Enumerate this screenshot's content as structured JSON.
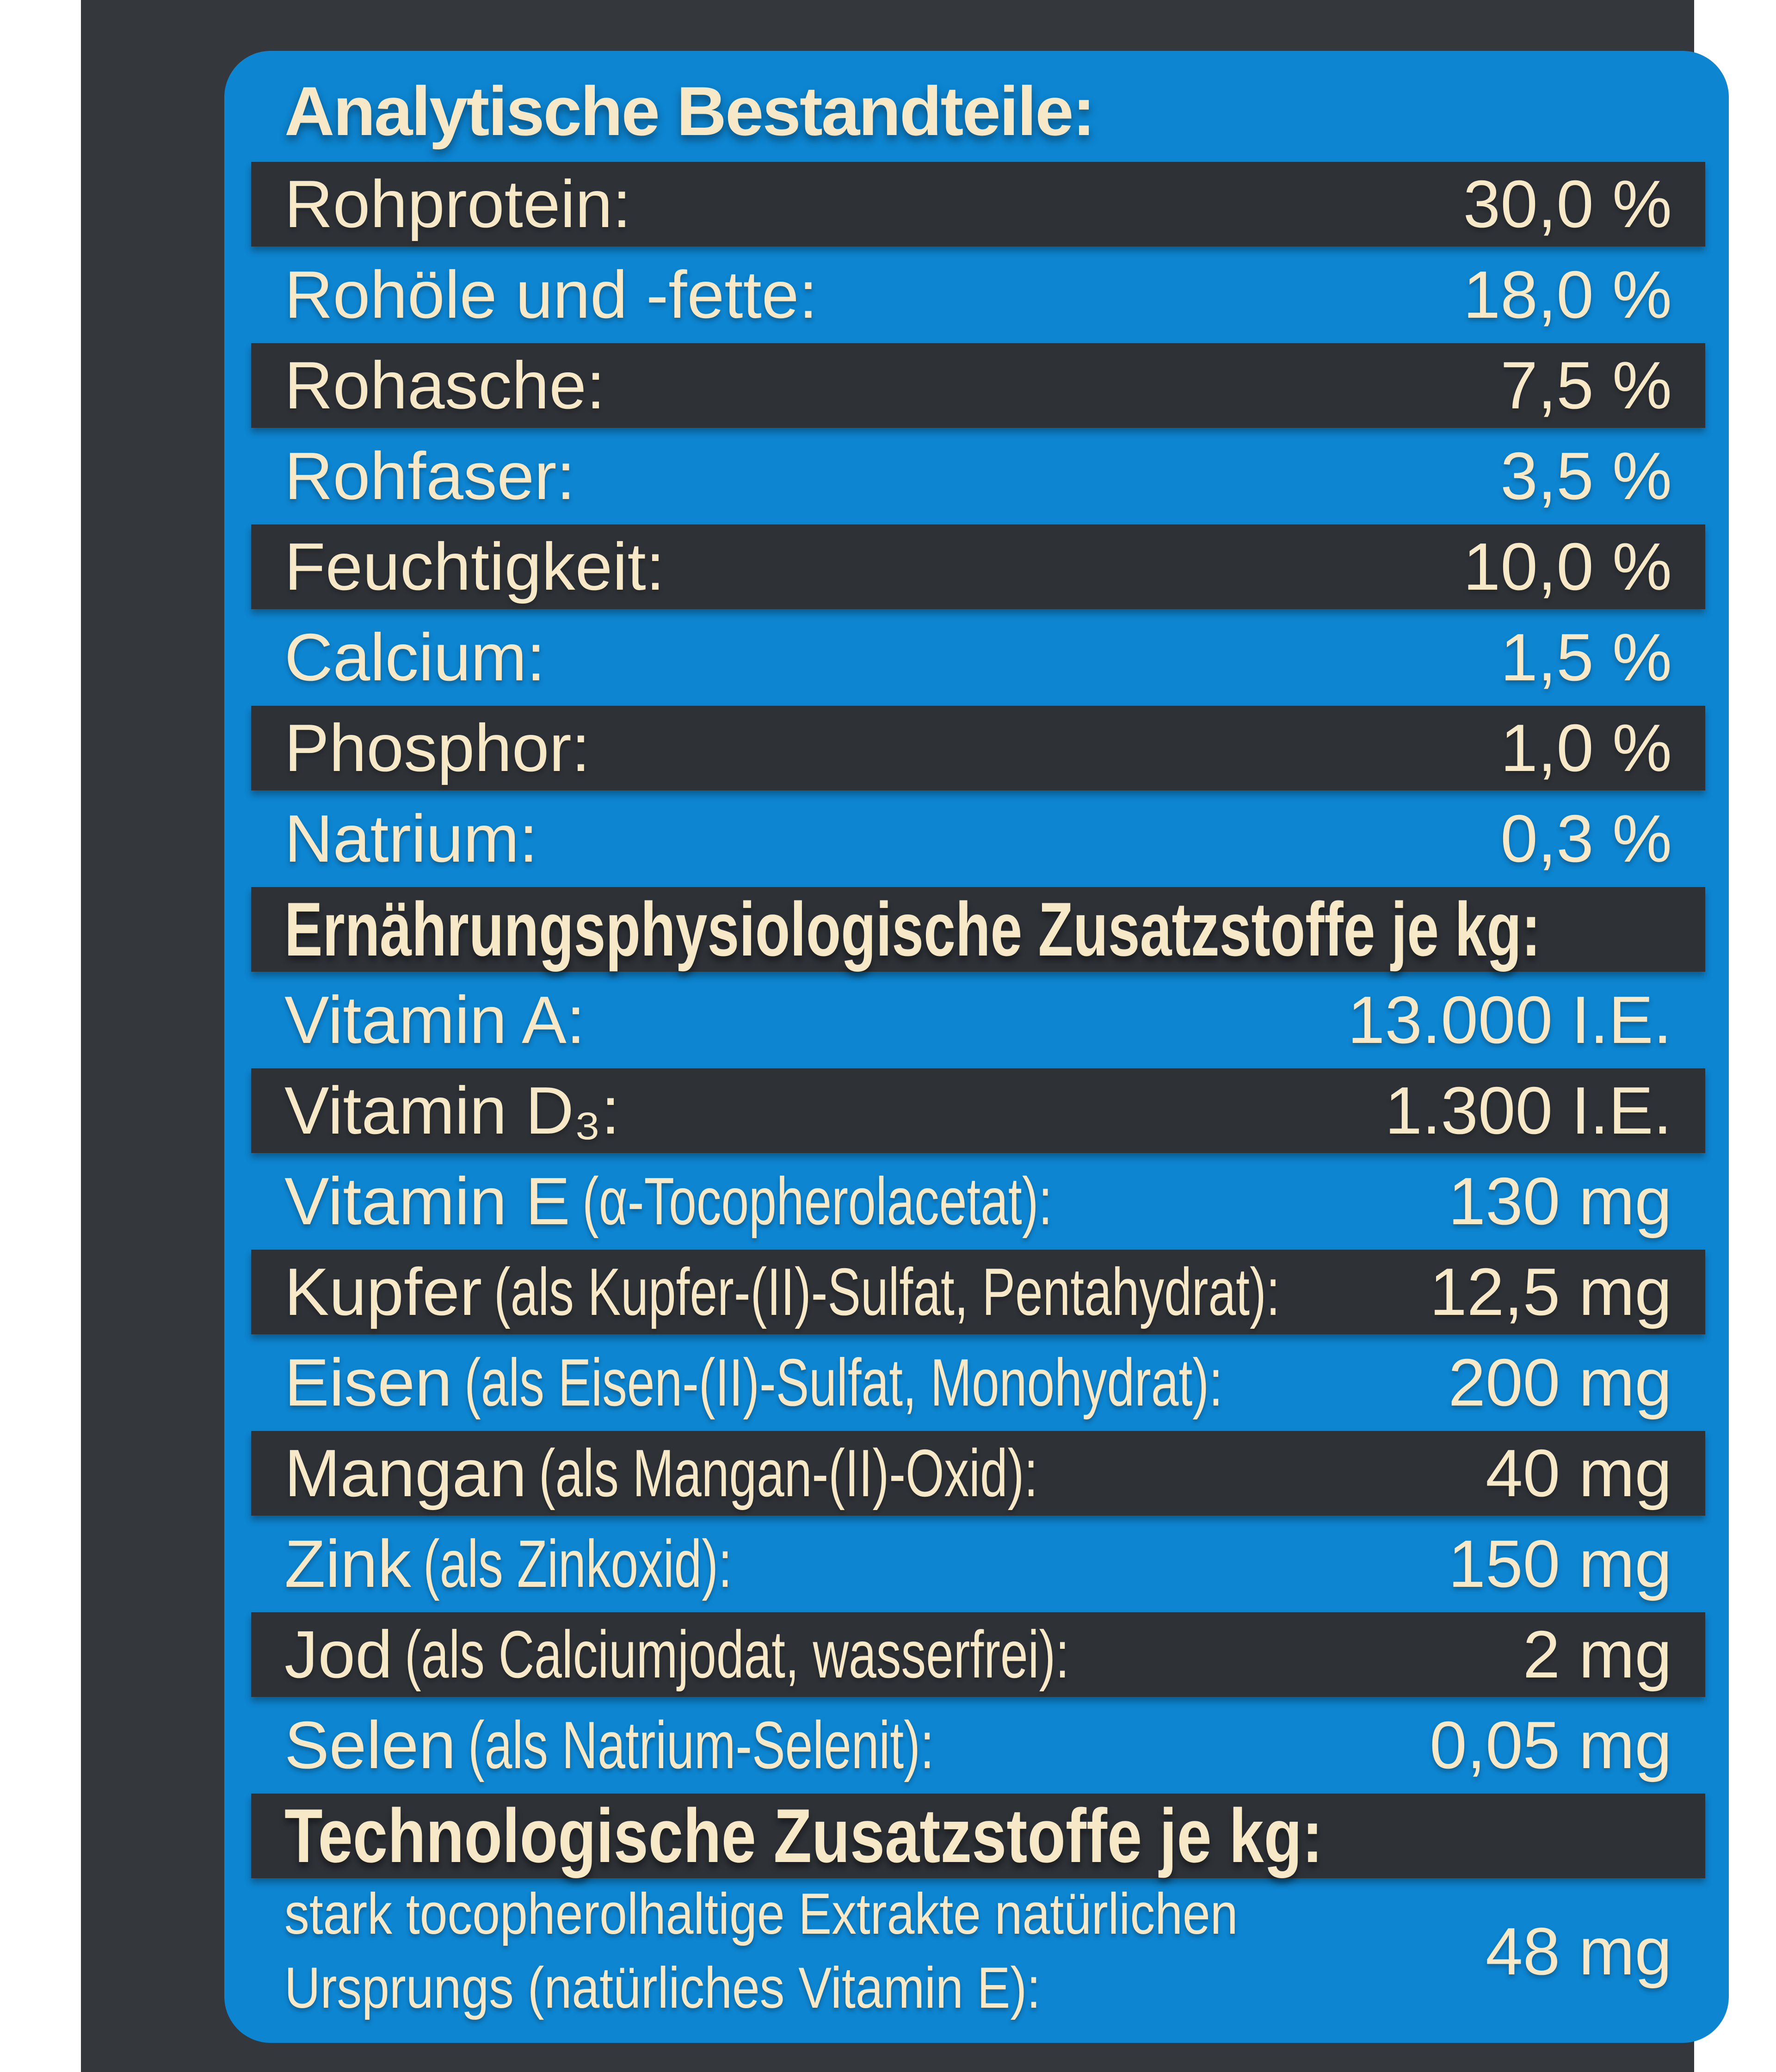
{
  "colors": {
    "page_background": "#ffffff",
    "label_background": "#34373c",
    "panel_blue": "#0d85d1",
    "row_dark": "#2e3237",
    "text_cream": "#f7e9c8"
  },
  "title": "Analytische Bestandteile:",
  "rows": [
    {
      "name": "Rohprotein:",
      "detail": "",
      "value": "30,0 %"
    },
    {
      "name": "Rohöle und -fette:",
      "detail": "",
      "value": "18,0 %"
    },
    {
      "name": "Rohasche:",
      "detail": "",
      "value": "7,5 %"
    },
    {
      "name": "Rohfaser:",
      "detail": "",
      "value": "3,5 %"
    },
    {
      "name": "Feuchtigkeit:",
      "detail": "",
      "value": "10,0 %"
    },
    {
      "name": "Calcium:",
      "detail": "",
      "value": "1,5 %"
    },
    {
      "name": "Phosphor:",
      "detail": "",
      "value": "1,0 %"
    },
    {
      "name": "Natrium:",
      "detail": "",
      "value": "0,3 %"
    },
    {
      "name": "Ernährungsphysiologische Zusatzstoffe je kg:",
      "detail": "",
      "value": ""
    },
    {
      "name": "Vitamin A:",
      "detail": "",
      "value": "13.000 I.E."
    },
    {
      "name": "Vitamin D₃:",
      "detail": "",
      "value": "1.300 I.E."
    },
    {
      "name": "Vitamin E",
      "detail": "(α-Tocopherolacetat):",
      "value": "130 mg"
    },
    {
      "name": "Kupfer",
      "detail": "(als Kupfer-(II)-Sulfat, Pentahydrat):",
      "value": "12,5 mg"
    },
    {
      "name": "Eisen",
      "detail": "(als Eisen-(II)-Sulfat, Monohydrat):",
      "value": "200 mg"
    },
    {
      "name": "Mangan",
      "detail": "(als Mangan-(II)-Oxid):",
      "value": "40 mg"
    },
    {
      "name": "Zink",
      "detail": "(als Zinkoxid):",
      "value": "150 mg"
    },
    {
      "name": "Jod",
      "detail": "(als Calciumjodat, wasserfrei):",
      "value": "2 mg"
    },
    {
      "name": "Selen",
      "detail": "(als Natrium-Selenit):",
      "value": "0,05 mg"
    },
    {
      "name": "Technologische Zusatzstoffe je kg:",
      "detail": "",
      "value": ""
    },
    {
      "line1": "stark tocopherolhaltige Extrakte natürlichen",
      "line2": "Ursprungs (natürliches Vitamin E):",
      "value": "48 mg"
    }
  ]
}
